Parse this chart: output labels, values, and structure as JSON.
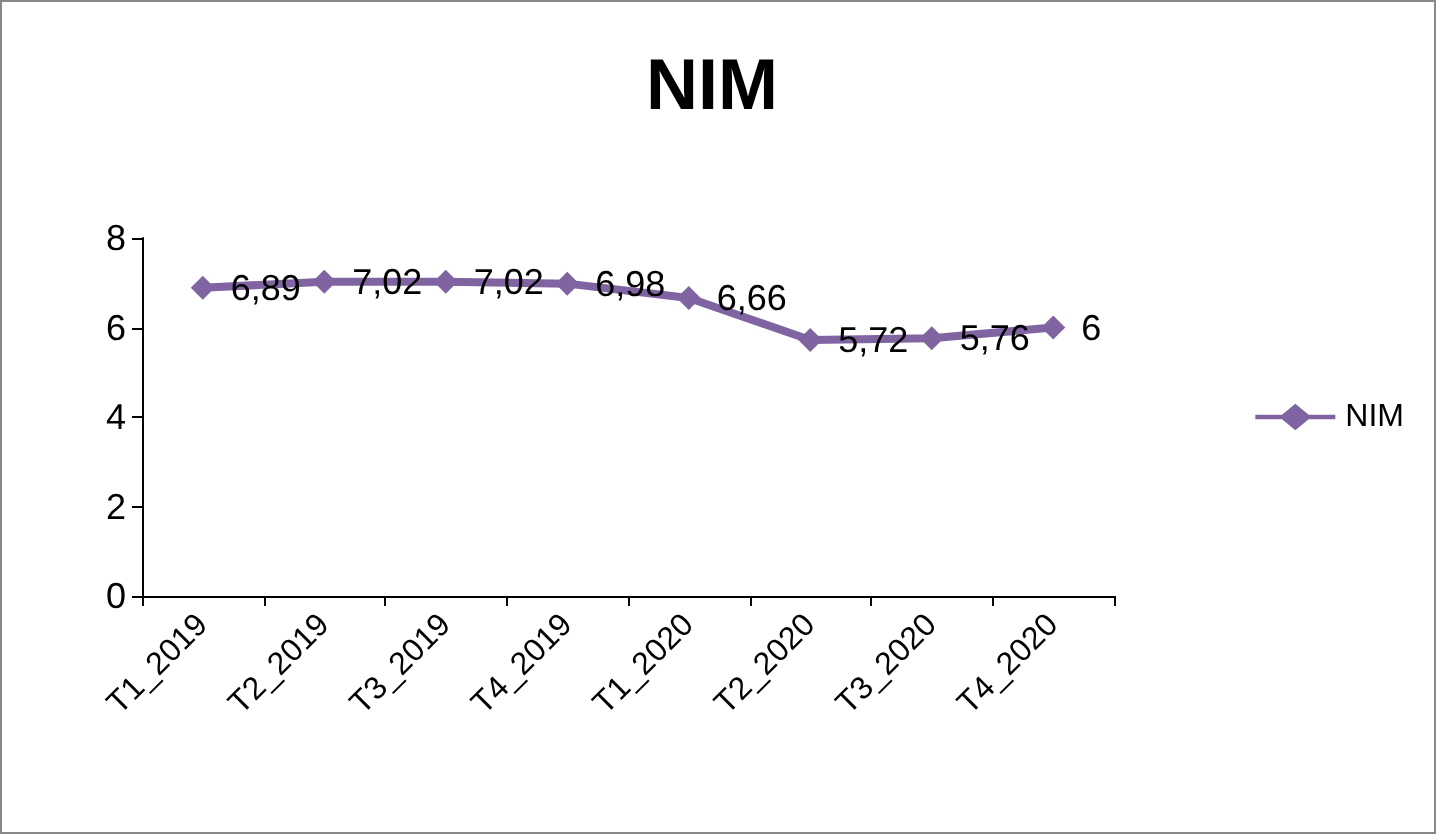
{
  "chart_data": {
    "type": "line",
    "title": "NIM",
    "categories": [
      "T1_2019",
      "T2_2019",
      "T3_2019",
      "T4_2019",
      "T1_2020",
      "T2_2020",
      "T3_2020",
      "T4_2020"
    ],
    "series": [
      {
        "name": "NIM",
        "color": "#8064a2",
        "values": [
          6.89,
          7.02,
          7.02,
          6.98,
          6.66,
          5.72,
          5.76,
          6
        ],
        "value_labels": [
          "6,89",
          "7,02",
          "7,02",
          "6,98",
          "6,66",
          "5,72",
          "5,76",
          "6"
        ]
      }
    ],
    "ylim": [
      0,
      8
    ],
    "yticks": [
      0,
      2,
      4,
      6,
      8
    ],
    "grid": false,
    "legend": "right",
    "marker": "diamond",
    "line_style": "solid"
  }
}
